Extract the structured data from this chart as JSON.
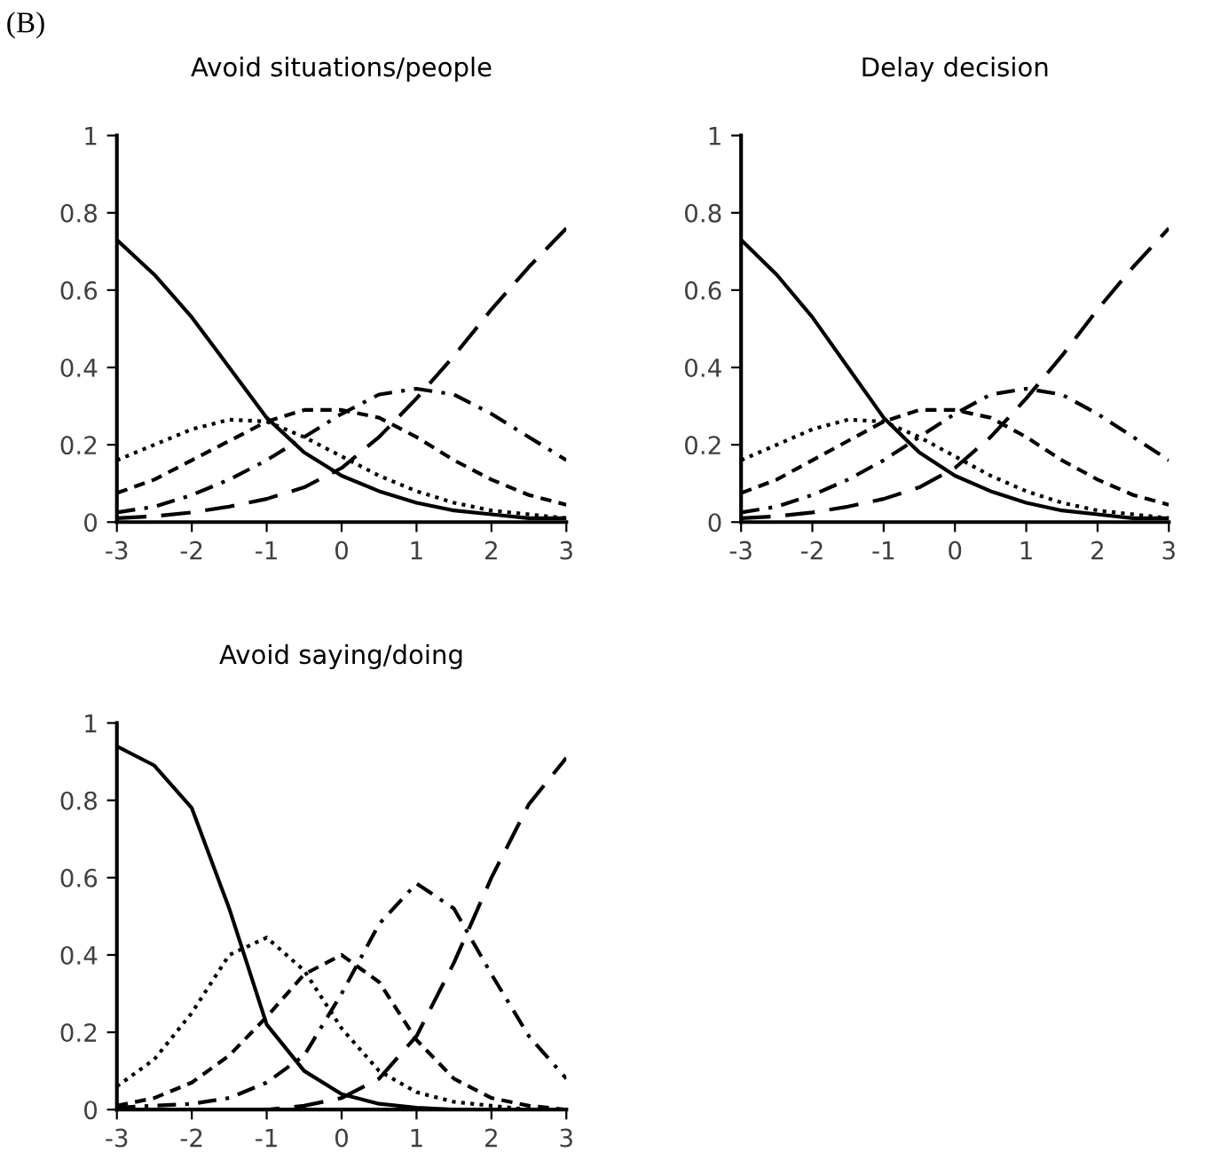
{
  "chart_data": [
    {
      "type": "line",
      "title": "Avoid situations/people",
      "annotations": [
        "(B)"
      ],
      "x": [
        -3,
        -2.5,
        -2,
        -1.5,
        -1,
        -0.5,
        0,
        0.5,
        1,
        1.5,
        2,
        2.5,
        3
      ],
      "xlim": [
        -3,
        3
      ],
      "xticks": [
        -3,
        -2,
        -1,
        0,
        1,
        2,
        3
      ],
      "ylim": [
        0,
        1
      ],
      "yticks": [
        0,
        0.2,
        0.4,
        0.6,
        0.8,
        1
      ],
      "grid": false,
      "legend": false,
      "series": [
        {
          "color": "#000000",
          "line_style": "solid",
          "values": [
            0.73,
            0.64,
            0.53,
            0.4,
            0.27,
            0.18,
            0.12,
            0.08,
            0.05,
            0.03,
            0.02,
            0.01,
            0.01
          ]
        },
        {
          "color": "#000000",
          "line_style": "dotted",
          "values": [
            0.16,
            0.2,
            0.24,
            0.265,
            0.26,
            0.22,
            0.17,
            0.12,
            0.08,
            0.05,
            0.03,
            0.02,
            0.01
          ]
        },
        {
          "color": "#000000",
          "line_style": "dashed",
          "values": [
            0.075,
            0.11,
            0.16,
            0.21,
            0.26,
            0.29,
            0.29,
            0.27,
            0.22,
            0.16,
            0.11,
            0.07,
            0.045
          ]
        },
        {
          "color": "#000000",
          "line_style": "dashdot",
          "values": [
            0.025,
            0.04,
            0.07,
            0.11,
            0.16,
            0.22,
            0.28,
            0.33,
            0.345,
            0.33,
            0.28,
            0.22,
            0.16
          ]
        },
        {
          "color": "#000000",
          "line_style": "longdash",
          "values": [
            0.01,
            0.015,
            0.025,
            0.04,
            0.06,
            0.09,
            0.14,
            0.22,
            0.32,
            0.43,
            0.55,
            0.66,
            0.76
          ]
        }
      ]
    },
    {
      "type": "line",
      "title": "Delay decision",
      "x": [
        -3,
        -2.5,
        -2,
        -1.5,
        -1,
        -0.5,
        0,
        0.5,
        1,
        1.5,
        2,
        2.5,
        3
      ],
      "xlim": [
        -3,
        3
      ],
      "xticks": [
        -3,
        -2,
        -1,
        0,
        1,
        2,
        3
      ],
      "ylim": [
        0,
        1
      ],
      "yticks": [
        0,
        0.2,
        0.4,
        0.6,
        0.8,
        1
      ],
      "grid": false,
      "legend": false,
      "series": [
        {
          "color": "#000000",
          "line_style": "solid",
          "values": [
            0.73,
            0.64,
            0.53,
            0.4,
            0.27,
            0.18,
            0.12,
            0.08,
            0.05,
            0.03,
            0.02,
            0.01,
            0.01
          ]
        },
        {
          "color": "#000000",
          "line_style": "dotted",
          "values": [
            0.16,
            0.2,
            0.24,
            0.265,
            0.26,
            0.22,
            0.17,
            0.12,
            0.08,
            0.05,
            0.03,
            0.02,
            0.01
          ]
        },
        {
          "color": "#000000",
          "line_style": "dashed",
          "values": [
            0.075,
            0.11,
            0.16,
            0.21,
            0.26,
            0.29,
            0.29,
            0.27,
            0.22,
            0.16,
            0.11,
            0.07,
            0.045
          ]
        },
        {
          "color": "#000000",
          "line_style": "dashdot",
          "values": [
            0.025,
            0.04,
            0.07,
            0.11,
            0.16,
            0.22,
            0.28,
            0.33,
            0.345,
            0.33,
            0.28,
            0.22,
            0.16
          ]
        },
        {
          "color": "#000000",
          "line_style": "longdash",
          "values": [
            0.01,
            0.015,
            0.025,
            0.04,
            0.06,
            0.09,
            0.14,
            0.22,
            0.32,
            0.43,
            0.55,
            0.66,
            0.76
          ]
        }
      ]
    },
    {
      "type": "line",
      "title": "Avoid saying/doing",
      "x": [
        -3,
        -2.5,
        -2,
        -1.5,
        -1,
        -0.5,
        0,
        0.5,
        1,
        1.5,
        2,
        2.5,
        3
      ],
      "xlim": [
        -3,
        3
      ],
      "xticks": [
        -3,
        -2,
        -1,
        0,
        1,
        2,
        3
      ],
      "ylim": [
        0,
        1
      ],
      "yticks": [
        0,
        0.2,
        0.4,
        0.6,
        0.8,
        1
      ],
      "grid": false,
      "legend": false,
      "series": [
        {
          "color": "#000000",
          "line_style": "solid",
          "values": [
            0.94,
            0.89,
            0.78,
            0.52,
            0.22,
            0.1,
            0.04,
            0.015,
            0.005,
            0,
            0,
            0,
            0
          ]
        },
        {
          "color": "#000000",
          "line_style": "dotted",
          "values": [
            0.06,
            0.13,
            0.25,
            0.4,
            0.445,
            0.36,
            0.21,
            0.1,
            0.045,
            0.02,
            0.01,
            0,
            0
          ]
        },
        {
          "color": "#000000",
          "line_style": "dashed",
          "values": [
            0.01,
            0.03,
            0.07,
            0.14,
            0.24,
            0.35,
            0.4,
            0.33,
            0.18,
            0.08,
            0.03,
            0.01,
            0
          ]
        },
        {
          "color": "#000000",
          "line_style": "dashdot",
          "values": [
            0.005,
            0.01,
            0.015,
            0.03,
            0.07,
            0.14,
            0.3,
            0.48,
            0.585,
            0.52,
            0.35,
            0.19,
            0.08
          ]
        },
        {
          "color": "#000000",
          "line_style": "longdash",
          "values": [
            0,
            0,
            0,
            0,
            0,
            0.01,
            0.03,
            0.08,
            0.19,
            0.38,
            0.6,
            0.79,
            0.91
          ]
        }
      ]
    }
  ]
}
